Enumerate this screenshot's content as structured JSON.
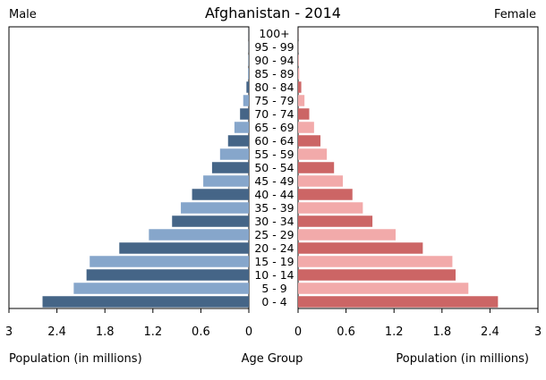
{
  "chart_data": {
    "type": "bar",
    "title": "Afghanistan - 2014",
    "left_label": "Male",
    "right_label": "Female",
    "xlabel_left": "Population (in millions)",
    "xlabel_center": "Age Group",
    "xlabel_right": "Population (in millions)",
    "xlim": [
      0,
      3
    ],
    "ticks": [
      3,
      2.4,
      1.8,
      1.2,
      0.6,
      0
    ],
    "categories": [
      "0 - 4",
      "5 - 9",
      "10 - 14",
      "15 - 19",
      "20 - 24",
      "25 - 29",
      "30 - 34",
      "35 - 39",
      "40 - 44",
      "45 - 49",
      "50 - 54",
      "55 - 59",
      "60 - 64",
      "65 - 69",
      "70 - 74",
      "75 - 79",
      "80 - 84",
      "85 - 89",
      "90 - 94",
      "95 - 99",
      "100+"
    ],
    "series": [
      {
        "name": "Male",
        "values": [
          2.58,
          2.19,
          2.03,
          1.99,
          1.62,
          1.25,
          0.96,
          0.85,
          0.71,
          0.57,
          0.46,
          0.36,
          0.26,
          0.18,
          0.11,
          0.07,
          0.03,
          0.01,
          0.005,
          0.002,
          0.001
        ],
        "colors": [
          "#456587",
          "#86a6cb"
        ]
      },
      {
        "name": "Female",
        "values": [
          2.5,
          2.13,
          1.97,
          1.93,
          1.56,
          1.22,
          0.93,
          0.81,
          0.68,
          0.56,
          0.45,
          0.36,
          0.28,
          0.2,
          0.14,
          0.08,
          0.04,
          0.015,
          0.006,
          0.002,
          0.001
        ],
        "colors": [
          "#cc6565",
          "#f2aaaa"
        ]
      }
    ],
    "grid": false
  }
}
